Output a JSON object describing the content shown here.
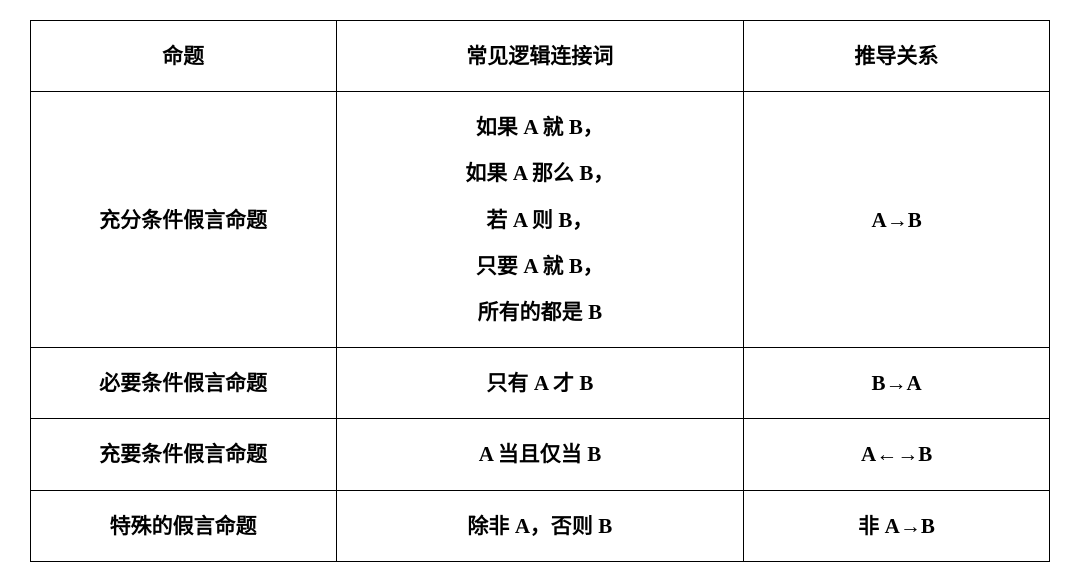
{
  "table": {
    "columns": [
      "命题",
      "常见逻辑连接词",
      "推导关系"
    ],
    "col_widths": [
      "30%",
      "40%",
      "30%"
    ],
    "rows": [
      {
        "proposition": "充分条件假言命题",
        "connectives": [
          "如果 A 就 B，",
          "如果 A 那么 B，",
          "若 A 则 B，",
          "只要 A 就 B，",
          "所有的都是 B"
        ],
        "relation": "A→B"
      },
      {
        "proposition": "必要条件假言命题",
        "connectives": [
          "只有 A 才 B"
        ],
        "relation": "B→A"
      },
      {
        "proposition": "充要条件假言命题",
        "connectives": [
          "A 当且仅当 B"
        ],
        "relation": "A←→B"
      },
      {
        "proposition": "特殊的假言命题",
        "connectives": [
          "除非 A，否则 B"
        ],
        "relation": "非 A→B"
      }
    ]
  },
  "style": {
    "border_color": "#000000",
    "background_color": "#ffffff",
    "text_color": "#000000",
    "font_size": 21,
    "font_weight": "bold",
    "line_height": 2.2
  }
}
